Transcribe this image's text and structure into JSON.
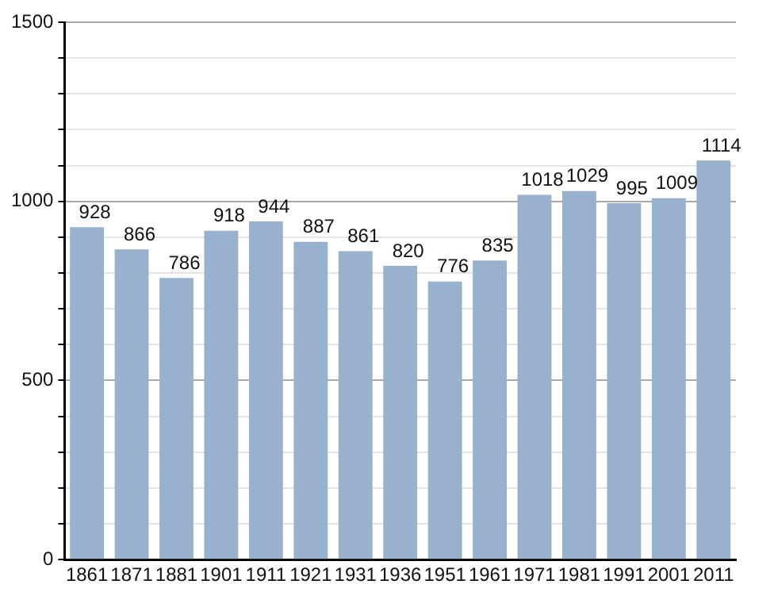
{
  "chart_data": {
    "type": "bar",
    "categories": [
      "1861",
      "1871",
      "1881",
      "1901",
      "1911",
      "1921",
      "1931",
      "1936",
      "1951",
      "1961",
      "1971",
      "1981",
      "1991",
      "2001",
      "2011"
    ],
    "values": [
      928,
      866,
      786,
      918,
      944,
      887,
      861,
      820,
      776,
      835,
      1018,
      1029,
      995,
      1009,
      1114
    ],
    "color": "#98b2cd",
    "ylim": [
      0,
      1500
    ],
    "yticks": [
      0,
      {
        "value": 100,
        "label": null
      },
      {
        "value": 200,
        "label": null
      },
      {
        "value": 300,
        "label": null
      },
      {
        "value": 400,
        "label": null
      },
      500,
      {
        "value": 600,
        "label": null
      },
      {
        "value": 700,
        "label": null
      },
      {
        "value": 800,
        "label": null
      },
      {
        "value": 900,
        "label": null
      },
      1000,
      {
        "value": 1100,
        "label": null
      },
      {
        "value": 1200,
        "label": null
      },
      {
        "value": 1300,
        "label": null
      },
      {
        "value": 1400,
        "label": null
      },
      1500
    ],
    "grid": true,
    "data_labels": true
  }
}
